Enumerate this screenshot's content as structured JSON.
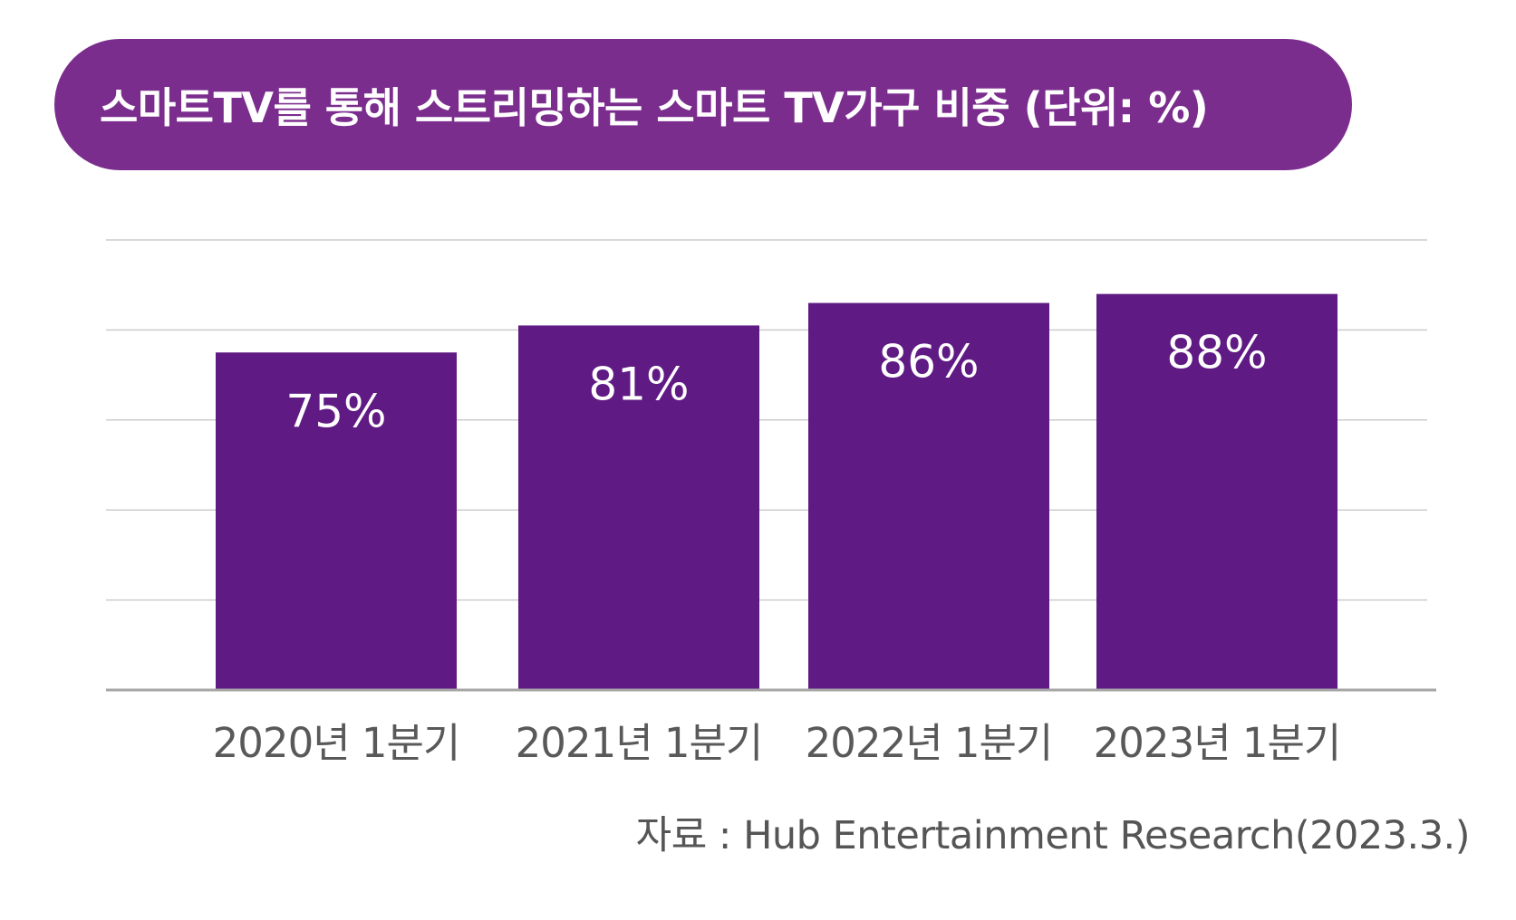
{
  "title": "스마트TV를 통해 스트리밍하는 스마트 TV가구 비중 (단위: %)",
  "source": "자료 : Hub Entertainment Research(2023.3.)",
  "colors": {
    "title_background": "#7b2d8e",
    "bar": "#5f1a84",
    "bar_label": "#ffffff",
    "gridline": "#cccccc",
    "baseline": "#a6a6a6",
    "tick_label": "#595959",
    "source_text": "#555555"
  },
  "chart_data": {
    "type": "bar",
    "title": "스마트TV를 통해 스트리밍하는 스마트 TV가구 비중 (단위: %)",
    "categories": [
      "2020년 1분기",
      "2021년 1분기",
      "2022년 1분기",
      "2023년 1분기"
    ],
    "values": [
      75,
      81,
      86,
      88
    ],
    "data_labels": [
      "75%",
      "81%",
      "86%",
      "88%"
    ],
    "xlabel": "",
    "ylabel": "",
    "ylim": [
      0,
      100
    ],
    "grid": true,
    "legend": "none"
  }
}
